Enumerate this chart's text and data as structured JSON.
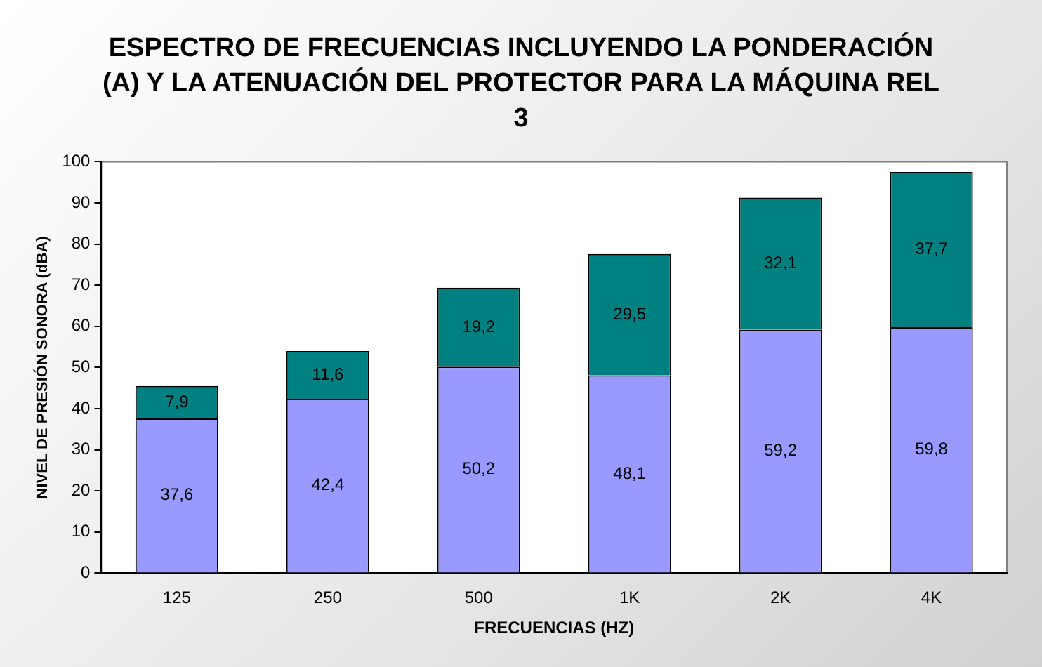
{
  "chart_data": {
    "type": "bar",
    "title": "ESPECTRO DE FRECUENCIAS INCLUYENDO LA PONDERACIÓN (A) Y LA ATENUACIÓN DEL PROTECTOR PARA LA MÁQUINA REL 3",
    "xlabel": "FRECUENCIAS (HZ)",
    "ylabel": "NIVEL DE PRESIÓN SONORA (dBA)",
    "categories": [
      "125",
      "250",
      "500",
      "1K",
      "2K",
      "4K"
    ],
    "stacked": true,
    "series": [
      {
        "color": "#9999ff",
        "values": [
          37.6,
          42.4,
          50.2,
          48.1,
          59.2,
          59.8
        ],
        "value_labels": [
          "37,6",
          "42,4",
          "50,2",
          "48,1",
          "59,2",
          "59,8"
        ]
      },
      {
        "color": "#008080",
        "values": [
          7.9,
          11.6,
          19.2,
          29.5,
          32.1,
          37.7
        ],
        "value_labels": [
          "7,9",
          "11,6",
          "19,2",
          "29,5",
          "32,1",
          "37,7"
        ]
      }
    ],
    "ylim": [
      0,
      100
    ],
    "yticks": [
      0,
      10,
      20,
      30,
      40,
      50,
      60,
      70,
      80,
      90,
      100
    ],
    "grid": false,
    "legend": false
  }
}
